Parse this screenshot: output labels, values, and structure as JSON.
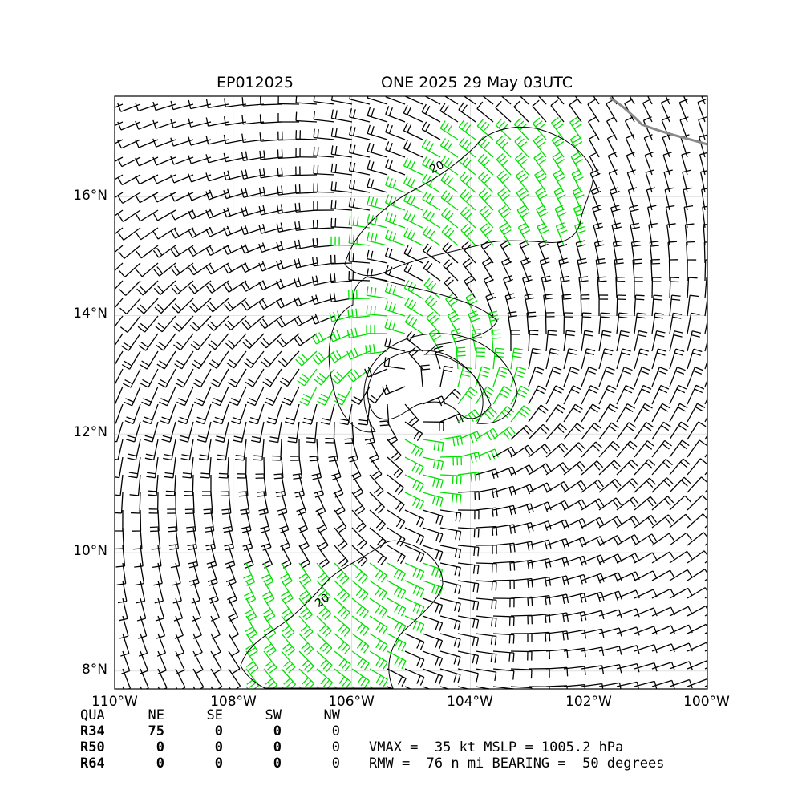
{
  "header": {
    "storm_id": "EP012025",
    "storm_title": "ONE 2025 29 May 03UTC"
  },
  "map": {
    "lat_labels": [
      "16°N",
      "14°N",
      "12°N",
      "10°N",
      "8°N"
    ],
    "lon_labels": [
      "110°W",
      "108°W",
      "106°W",
      "104°W",
      "102°W",
      "100°W"
    ],
    "lon_range": [
      -110,
      -100
    ],
    "lat_range": [
      7.7,
      17.7
    ],
    "center": {
      "lon": -105.0,
      "lat": 12.7
    },
    "contour_label": "20",
    "colors": {
      "barb_normal": "#000000",
      "barb_strong": "#00e000",
      "coastline": "#888888",
      "grid": "#cccccc"
    }
  },
  "radii_table": {
    "headers": [
      "QUA",
      "NE",
      "SE",
      "SW",
      "NW"
    ],
    "rows": [
      {
        "name": "R34",
        "ne": "75",
        "se": "0",
        "sw": "0",
        "nw": "0"
      },
      {
        "name": "R50",
        "ne": "0",
        "se": "0",
        "sw": "0",
        "nw": "0"
      },
      {
        "name": "R64",
        "ne": "0",
        "se": "0",
        "sw": "0",
        "nw": "0"
      }
    ]
  },
  "summary": {
    "line1": "VMAX =  35 kt MSLP = 1005.2 hPa",
    "line2": "RMW =  76 n mi BEARING =  50 degrees"
  }
}
